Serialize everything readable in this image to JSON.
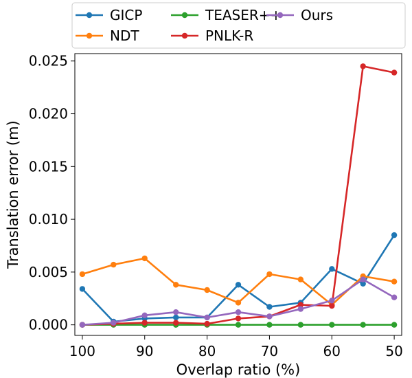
{
  "chart_data": {
    "type": "line",
    "title": "",
    "xlabel": "Overlap ratio (%)",
    "ylabel": "Translation error (m)",
    "x": [
      100,
      95,
      90,
      85,
      80,
      75,
      70,
      65,
      60,
      55,
      50
    ],
    "xlim": [
      101.2,
      48.8
    ],
    "ylim": [
      -0.001,
      0.0257
    ],
    "xticks": [
      100,
      90,
      80,
      70,
      60,
      50
    ],
    "xtick_labels": [
      "100",
      "90",
      "80",
      "70",
      "60",
      "50"
    ],
    "yticks": [
      0,
      0.005,
      0.01,
      0.015,
      0.02,
      0.025
    ],
    "ytick_labels": [
      "0.000",
      "0.005",
      "0.010",
      "0.015",
      "0.020",
      "0.025"
    ],
    "grid": false,
    "legend_position": "top",
    "series": [
      {
        "name": "GICP",
        "color": "#1f77b4",
        "values": [
          0.0034,
          0.0003,
          0.0006,
          0.0007,
          0.0007,
          0.0038,
          0.0017,
          0.0021,
          0.0053,
          0.0039,
          0.0085
        ]
      },
      {
        "name": "NDT",
        "color": "#ff7f0e",
        "values": [
          0.0048,
          0.0057,
          0.0063,
          0.0038,
          0.0033,
          0.0021,
          0.0048,
          0.0043,
          0.0019,
          0.0046,
          0.0041
        ]
      },
      {
        "name": "TEASER++",
        "color": "#2ca02c",
        "values": [
          0.0,
          0.0,
          0.0,
          0.0,
          0.0,
          0.0,
          0.0,
          0.0,
          0.0,
          0.0,
          0.0
        ]
      },
      {
        "name": "PNLK-R",
        "color": "#d62728",
        "values": [
          0.0,
          0.0001,
          0.0002,
          0.0002,
          0.0001,
          0.0006,
          0.0008,
          0.0019,
          0.0018,
          0.0245,
          0.0239
        ]
      },
      {
        "name": "Ours",
        "color": "#9467bd",
        "values": [
          0.0,
          0.0002,
          0.0009,
          0.0012,
          0.0007,
          0.0012,
          0.0008,
          0.0015,
          0.0023,
          0.0043,
          0.0026
        ]
      }
    ]
  }
}
